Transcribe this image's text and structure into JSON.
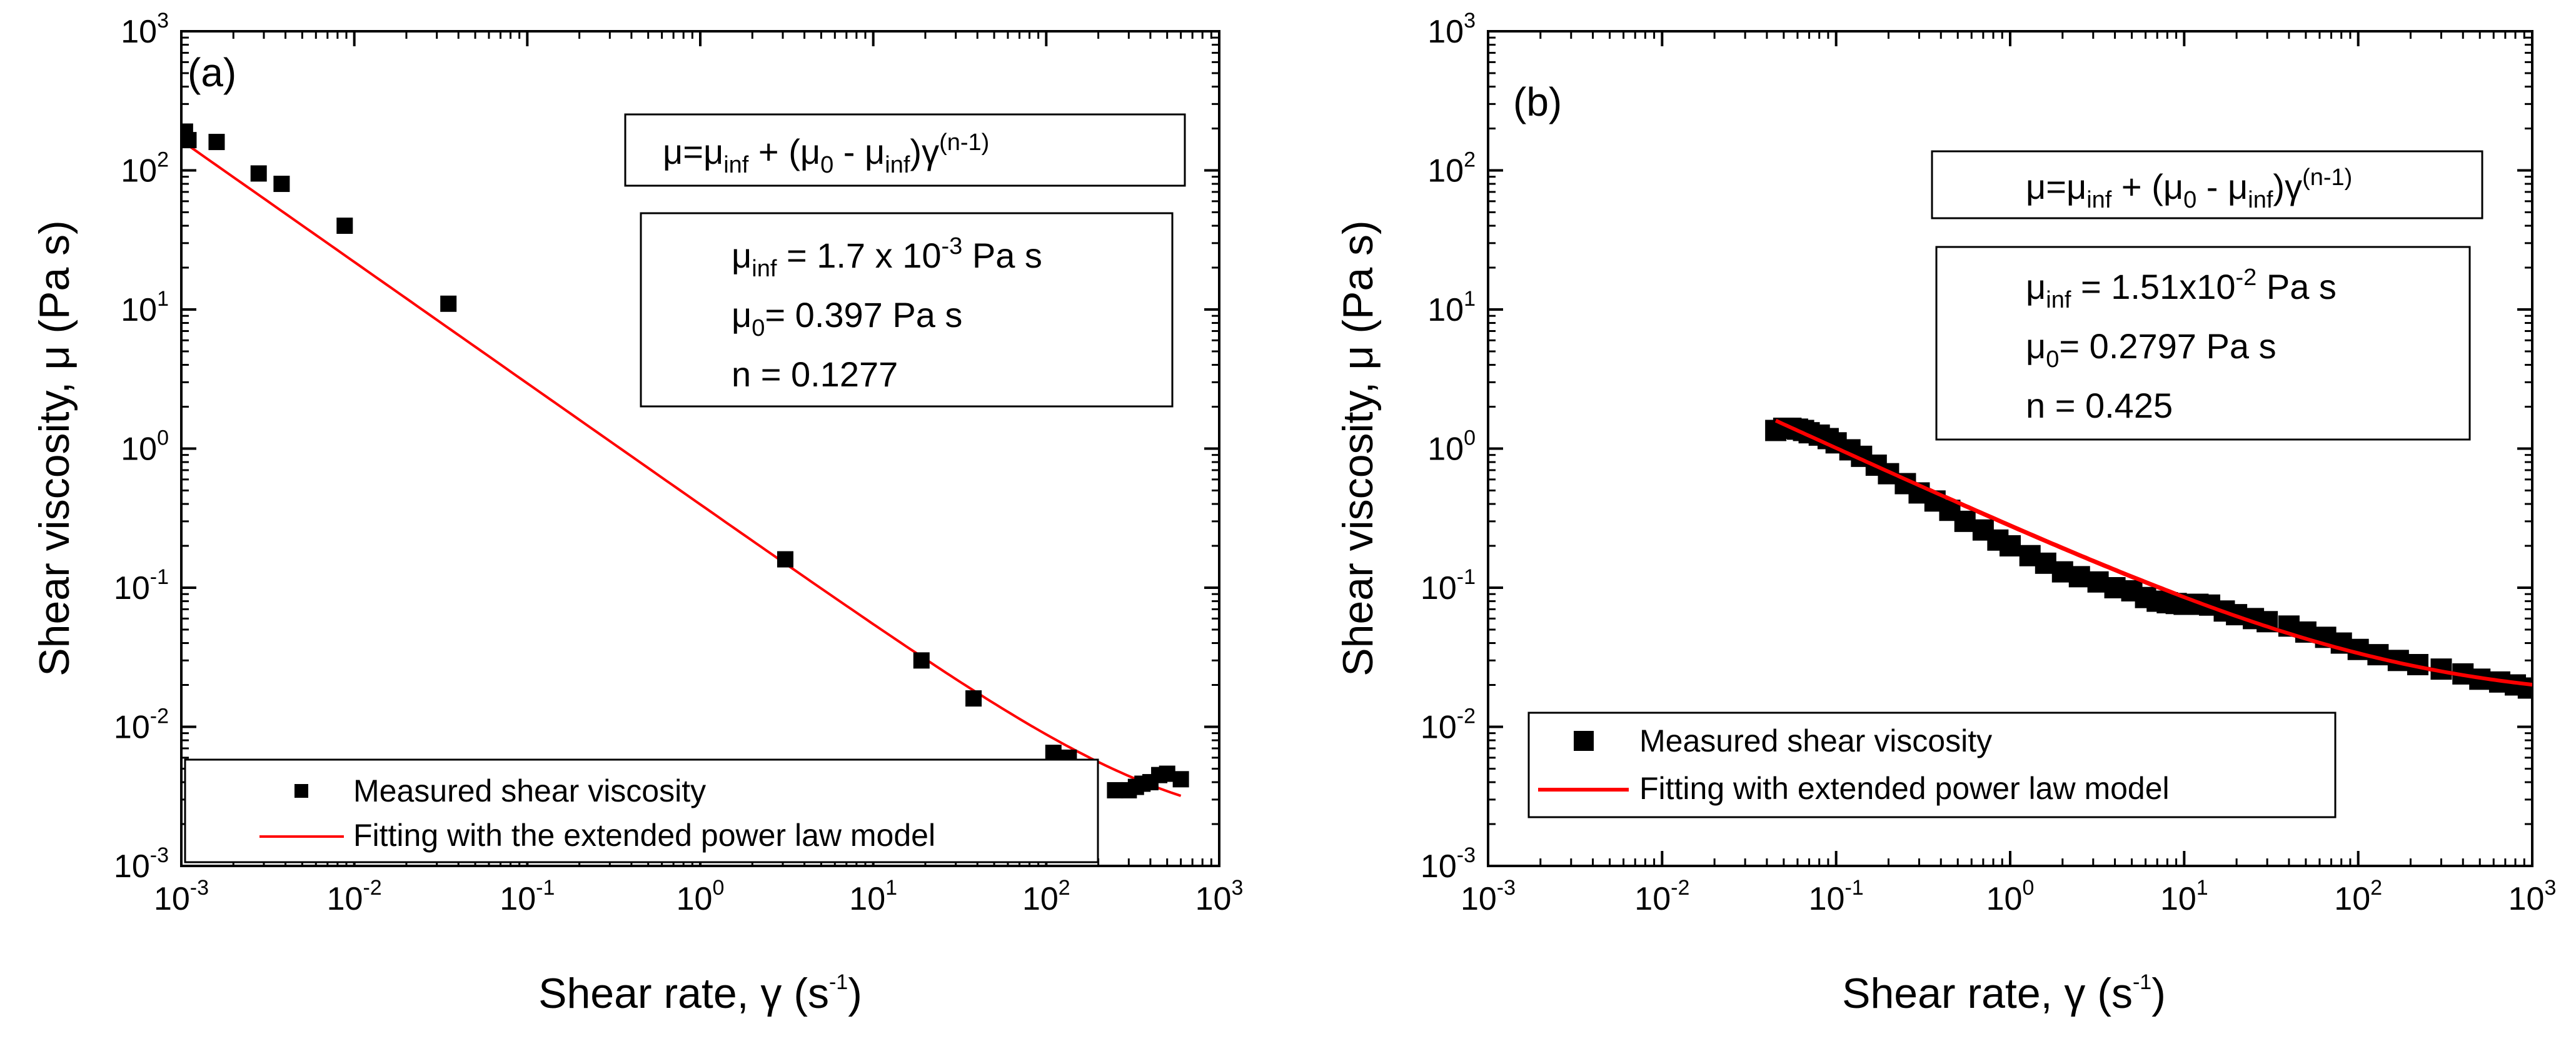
{
  "colors": {
    "marker": "#000000",
    "fit_line": "#ff0000",
    "frame": "#000000",
    "background": "#ffffff"
  },
  "chart_data": [
    {
      "type": "scatter",
      "panel_label": "(a)",
      "x_scale": "log",
      "y_scale": "log",
      "xlim": [
        0.001,
        1000
      ],
      "ylim": [
        0.001,
        1000
      ],
      "x_ticks": [
        0.001,
        0.01,
        0.1,
        1,
        10,
        100,
        1000
      ],
      "x_tick_labels": [
        {
          "base": "10",
          "exp": "-3"
        },
        {
          "base": "10",
          "exp": "-2"
        },
        {
          "base": "10",
          "exp": "-1"
        },
        {
          "base": "10",
          "exp": "0"
        },
        {
          "base": "10",
          "exp": "1"
        },
        {
          "base": "10",
          "exp": "2"
        },
        {
          "base": "10",
          "exp": "3"
        }
      ],
      "y_ticks": [
        0.001,
        0.01,
        0.1,
        1,
        10,
        100,
        1000
      ],
      "y_tick_labels": [
        {
          "base": "10",
          "exp": "-3"
        },
        {
          "base": "10",
          "exp": "-2"
        },
        {
          "base": "10",
          "exp": "-1"
        },
        {
          "base": "10",
          "exp": "0"
        },
        {
          "base": "10",
          "exp": "1"
        },
        {
          "base": "10",
          "exp": "2"
        },
        {
          "base": "10",
          "exp": "3"
        }
      ],
      "xlabel": {
        "main": "Shear rate, γ (s",
        "exp": "-1",
        "tail": ")"
      },
      "ylabel": "Shear viscosity, μ (Pa s)",
      "series": [
        {
          "name": "Measured shear viscosity",
          "kind": "markers",
          "points": [
            [
              0.00105,
              190
            ],
            [
              0.0011,
              165
            ],
            [
              0.0016,
              160
            ],
            [
              0.0028,
              95
            ],
            [
              0.0038,
              80
            ],
            [
              0.0088,
              40
            ],
            [
              0.035,
              11
            ],
            [
              3.1,
              0.16
            ],
            [
              19,
              0.03
            ],
            [
              38,
              0.016
            ],
            [
              110,
              0.0065
            ],
            [
              135,
              0.006
            ],
            [
              250,
              0.0035
            ],
            [
              300,
              0.0035
            ],
            [
              330,
              0.0037
            ],
            [
              360,
              0.0039
            ],
            [
              400,
              0.004
            ],
            [
              450,
              0.0045
            ],
            [
              500,
              0.0046
            ],
            [
              600,
              0.0042
            ]
          ]
        },
        {
          "name": "Fitting with the extended power law model",
          "kind": "fit",
          "model": {
            "mu_inf": 0.0017,
            "mu_0": 0.397,
            "n": 0.1277,
            "x_range": [
              0.001,
              600
            ]
          }
        }
      ],
      "legend_position": "bottom-left",
      "equation": {
        "lhs": "μ=μ",
        "sub1": "inf",
        "mid1": " + (μ",
        "sub2": "0",
        "mid2": " - μ",
        "sub3": "inf",
        "mid3": ")γ",
        "sup": "(n-1)"
      },
      "params": [
        {
          "sym": "μ",
          "sub": "inf",
          "text": " = 1.7 x 10",
          "sup": "-3",
          "tail": " Pa s"
        },
        {
          "sym": "μ",
          "sub": "0",
          "text": "= 0.397 Pa s",
          "sup": "",
          "tail": ""
        },
        {
          "sym": "n",
          "sub": "",
          "text": " = 0.1277",
          "sup": "",
          "tail": ""
        }
      ]
    },
    {
      "type": "scatter",
      "panel_label": "(b)",
      "x_scale": "log",
      "y_scale": "log",
      "xlim": [
        0.001,
        1000
      ],
      "ylim": [
        0.001,
        1000
      ],
      "x_ticks": [
        0.001,
        0.01,
        0.1,
        1,
        10,
        100,
        1000
      ],
      "x_tick_labels": [
        {
          "base": "10",
          "exp": "-3"
        },
        {
          "base": "10",
          "exp": "-2"
        },
        {
          "base": "10",
          "exp": "-1"
        },
        {
          "base": "10",
          "exp": "0"
        },
        {
          "base": "10",
          "exp": "1"
        },
        {
          "base": "10",
          "exp": "2"
        },
        {
          "base": "10",
          "exp": "3"
        }
      ],
      "y_ticks": [
        0.001,
        0.01,
        0.1,
        1,
        10,
        100,
        1000
      ],
      "y_tick_labels": [
        {
          "base": "10",
          "exp": "-3"
        },
        {
          "base": "10",
          "exp": "-2"
        },
        {
          "base": "10",
          "exp": "-1"
        },
        {
          "base": "10",
          "exp": "0"
        },
        {
          "base": "10",
          "exp": "1"
        },
        {
          "base": "10",
          "exp": "2"
        },
        {
          "base": "10",
          "exp": "3"
        }
      ],
      "xlabel": {
        "main": "Shear rate, γ (s",
        "exp": "-1",
        "tail": ")"
      },
      "ylabel": "Shear viscosity, μ (Pa s)",
      "series": [
        {
          "name": "Measured shear viscosity",
          "kind": "markers",
          "points": [
            [
              0.045,
              1.35
            ],
            [
              0.05,
              1.4
            ],
            [
              0.055,
              1.4
            ],
            [
              0.06,
              1.38
            ],
            [
              0.065,
              1.35
            ],
            [
              0.07,
              1.3
            ],
            [
              0.08,
              1.25
            ],
            [
              0.09,
              1.18
            ],
            [
              0.1,
              1.1
            ],
            [
              0.12,
              0.98
            ],
            [
              0.14,
              0.88
            ],
            [
              0.17,
              0.76
            ],
            [
              0.2,
              0.66
            ],
            [
              0.25,
              0.56
            ],
            [
              0.3,
              0.48
            ],
            [
              0.37,
              0.42
            ],
            [
              0.45,
              0.36
            ],
            [
              0.55,
              0.3
            ],
            [
              0.7,
              0.26
            ],
            [
              0.85,
              0.22
            ],
            [
              1.0,
              0.2
            ],
            [
              1.3,
              0.17
            ],
            [
              1.6,
              0.15
            ],
            [
              2.0,
              0.13
            ],
            [
              2.5,
              0.12
            ],
            [
              3.2,
              0.11
            ],
            [
              4.0,
              0.1
            ],
            [
              5.0,
              0.095
            ],
            [
              6.0,
              0.085
            ],
            [
              7.0,
              0.08
            ],
            [
              8.0,
              0.078
            ],
            [
              9.0,
              0.077
            ],
            [
              10,
              0.076
            ],
            [
              12,
              0.076
            ],
            [
              14,
              0.075
            ],
            [
              17,
              0.068
            ],
            [
              20,
              0.064
            ],
            [
              25,
              0.06
            ],
            [
              30,
              0.057
            ],
            [
              40,
              0.053
            ],
            [
              50,
              0.048
            ],
            [
              65,
              0.044
            ],
            [
              80,
              0.04
            ],
            [
              100,
              0.036
            ],
            [
              130,
              0.033
            ],
            [
              170,
              0.03
            ],
            [
              220,
              0.028
            ],
            [
              300,
              0.026
            ],
            [
              400,
              0.024
            ],
            [
              500,
              0.022
            ],
            [
              650,
              0.021
            ],
            [
              800,
              0.02
            ],
            [
              950,
              0.019
            ]
          ]
        },
        {
          "name": "Fitting with extended power law model",
          "kind": "fit",
          "model": {
            "mu_inf": 0.0151,
            "mu_0": 0.2797,
            "n": 0.425,
            "x_range": [
              0.045,
              1000
            ]
          }
        }
      ],
      "legend_position": "bottom-left",
      "equation": {
        "lhs": "μ=μ",
        "sub1": "inf",
        "mid1": " + (μ",
        "sub2": "0",
        "mid2": " - μ",
        "sub3": "inf",
        "mid3": ")γ",
        "sup": "(n-1)"
      },
      "params": [
        {
          "sym": "μ",
          "sub": "inf",
          "text": " = 1.51x10",
          "sup": "-2",
          "tail": " Pa s"
        },
        {
          "sym": "μ",
          "sub": "0",
          "text": "= 0.2797 Pa s",
          "sup": "",
          "tail": ""
        },
        {
          "sym": "n",
          "sub": "",
          "text": " = 0.425",
          "sup": "",
          "tail": ""
        }
      ]
    }
  ]
}
